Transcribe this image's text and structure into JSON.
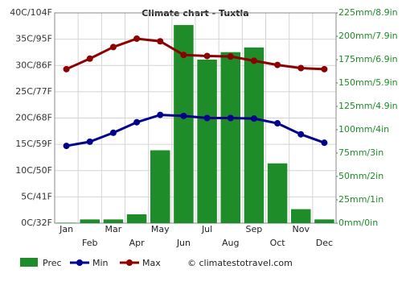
{
  "chart_data": {
    "type": "bar",
    "title": "Climate chart - Tuxtla",
    "categories": [
      "Jan",
      "Feb",
      "Mar",
      "Apr",
      "May",
      "Jun",
      "Jul",
      "Aug",
      "Sep",
      "Oct",
      "Nov",
      "Dec"
    ],
    "series": [
      {
        "name": "Prec",
        "type": "bar",
        "axis": "y2",
        "color": "#1e8c28",
        "values": [
          0.5,
          4,
          4,
          9.5,
          78,
          212,
          175,
          183,
          188,
          64,
          15,
          4
        ]
      },
      {
        "name": "Min",
        "type": "line",
        "color": "#00008b",
        "values": [
          14.7,
          15.5,
          17.2,
          19.2,
          20.6,
          20.4,
          20.0,
          20.0,
          19.9,
          19.0,
          16.9,
          15.3
        ]
      },
      {
        "name": "Max",
        "type": "line",
        "color": "#8b0000",
        "values": [
          29.3,
          31.3,
          33.5,
          35.1,
          34.6,
          32.0,
          31.8,
          31.7,
          30.9,
          30.1,
          29.5,
          29.3
        ]
      }
    ],
    "ylim": [
      0,
      40
    ],
    "yticks": [
      {
        "value": 0,
        "label": "0C/32F"
      },
      {
        "value": 5,
        "label": "5C/41F"
      },
      {
        "value": 10,
        "label": "10C/50F"
      },
      {
        "value": 15,
        "label": "15C/59F"
      },
      {
        "value": 20,
        "label": "20C/68F"
      },
      {
        "value": 25,
        "label": "25C/77F"
      },
      {
        "value": 30,
        "label": "30C/86F"
      },
      {
        "value": 35,
        "label": "35C/95F"
      },
      {
        "value": 40,
        "label": "40C/104F"
      }
    ],
    "y2lim": [
      0,
      225
    ],
    "y2ticks": [
      {
        "value": 0,
        "label": "0mm/0in"
      },
      {
        "value": 25,
        "label": "25mm/1in"
      },
      {
        "value": 50,
        "label": "50mm/2in"
      },
      {
        "value": 75,
        "label": "75mm/3in"
      },
      {
        "value": 100,
        "label": "100mm/4in"
      },
      {
        "value": 125,
        "label": "125mm/4.9in"
      },
      {
        "value": 150,
        "label": "150mm/5.9in"
      },
      {
        "value": 175,
        "label": "175mm/6.9in"
      },
      {
        "value": 200,
        "label": "200mm/7.9in"
      },
      {
        "value": 225,
        "label": "225mm/8.9in"
      }
    ],
    "grid": true,
    "credit": "© climatestotravel.com"
  }
}
